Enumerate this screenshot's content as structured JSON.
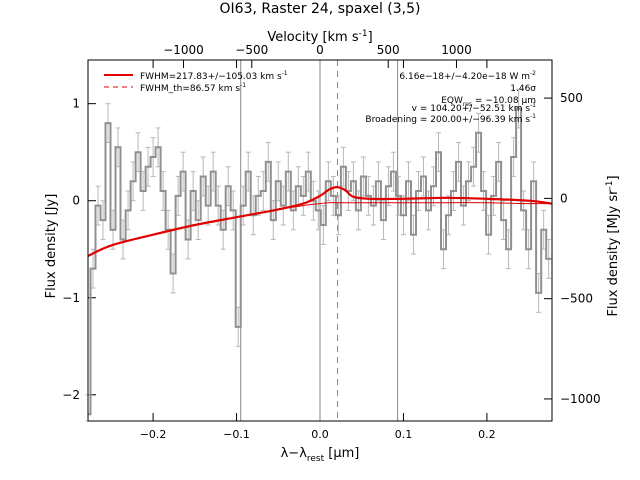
{
  "chart_data": {
    "type": "line",
    "title": "OI63, Raster 24, spaxel (3,5)",
    "xlabel": "λ−λ",
    "xlabel_sub": "rest",
    "xlabel_unit": " [μm]",
    "ylabel": "Flux density [Jy]",
    "top_axis_label": "Velocity [km s",
    "top_axis_label_sup": "-1",
    "top_axis_label_end": "]",
    "right_axis_label": "Flux density [MJy sr",
    "right_axis_label_sup": "-1",
    "right_axis_label_end": "]",
    "xlim": [
      -0.278,
      0.278
    ],
    "ylim": [
      -2.27,
      1.45
    ],
    "top_lim": [
      -1700,
      1700
    ],
    "right_lim": [
      -1110,
      690
    ],
    "x_ticks": [
      -0.2,
      -0.1,
      0.0,
      0.1,
      0.2
    ],
    "x_tick_labels": [
      "−0.2",
      "−0.1",
      "0.0",
      "0.1",
      "0.2"
    ],
    "y_ticks": [
      -2,
      -1,
      0,
      1
    ],
    "y_tick_labels": [
      "−2",
      "−1",
      "0",
      "1"
    ],
    "top_ticks": [
      -1000,
      -500,
      0,
      500,
      1000
    ],
    "top_tick_labels": [
      "−1000",
      "−500",
      "0",
      "500",
      "1000"
    ],
    "right_ticks": [
      -1000,
      -500,
      0,
      500
    ],
    "right_tick_labels": [
      "−1000",
      "−500",
      "0",
      "500"
    ],
    "vlines_solid": [
      -0.095,
      0.0,
      0.093
    ],
    "vline_dashed": 0.021,
    "legend": {
      "placement": "top-left",
      "fit_label": "FWHM=217.83+/−105.03 km s",
      "fit_label_sup": "-1",
      "th_label": "FWHM_th=86.57 km s",
      "th_label_sup": "-1"
    },
    "annotations": {
      "flux": "6.16e−18+/−4.20e−18 W m",
      "flux_sup": "-2",
      "sigma": "1.46σ",
      "eqw_pre": "EQW",
      "eqw_sub": "res",
      "eqw_post": " = −10.08 μm",
      "velocity": "v = 104.20+/−52.51 km s",
      "velocity_sup": "-1",
      "broadening": "Broadening = 200.00+/−96.39 km s",
      "broadening_sup": "-1"
    },
    "colors": {
      "data": "#909090",
      "errorbar": "#b8b8b8",
      "fit": "#e00000",
      "grid": "#888888"
    },
    "series": [
      {
        "name": "data",
        "x": [
          -0.278,
          -0.272,
          -0.266,
          -0.26,
          -0.254,
          -0.248,
          -0.242,
          -0.236,
          -0.23,
          -0.224,
          -0.218,
          -0.212,
          -0.206,
          -0.2,
          -0.194,
          -0.188,
          -0.182,
          -0.176,
          -0.17,
          -0.164,
          -0.158,
          -0.152,
          -0.146,
          -0.14,
          -0.134,
          -0.128,
          -0.122,
          -0.116,
          -0.11,
          -0.104,
          -0.098,
          -0.092,
          -0.086,
          -0.08,
          -0.074,
          -0.068,
          -0.062,
          -0.056,
          -0.05,
          -0.044,
          -0.038,
          -0.032,
          -0.026,
          -0.02,
          -0.014,
          -0.008,
          -0.002,
          0.004,
          0.01,
          0.016,
          0.022,
          0.028,
          0.034,
          0.04,
          0.046,
          0.052,
          0.058,
          0.064,
          0.07,
          0.076,
          0.082,
          0.088,
          0.094,
          0.1,
          0.106,
          0.112,
          0.118,
          0.124,
          0.13,
          0.136,
          0.142,
          0.148,
          0.154,
          0.16,
          0.166,
          0.172,
          0.178,
          0.184,
          0.19,
          0.196,
          0.202,
          0.208,
          0.214,
          0.22,
          0.226,
          0.232,
          0.238,
          0.244,
          0.25,
          0.256,
          0.262,
          0.268,
          0.274
        ],
        "y": [
          -2.2,
          -0.7,
          -0.05,
          -0.2,
          0.8,
          -0.3,
          0.55,
          -0.4,
          -0.1,
          0.2,
          0.5,
          0.1,
          0.35,
          0.45,
          0.55,
          0.1,
          -0.3,
          -0.75,
          0.05,
          0.3,
          -0.4,
          0.1,
          -0.2,
          0.25,
          -0.05,
          0.3,
          -0.05,
          -0.3,
          0.15,
          -0.1,
          -1.3,
          -0.05,
          0.3,
          -0.15,
          0.05,
          0.1,
          0.4,
          -0.2,
          0.2,
          -0.05,
          0.3,
          -0.1,
          0.15,
          0.05,
          0.3,
          0.0,
          -0.1,
          -0.25,
          0.2,
          0.05,
          -0.15,
          0.35,
          0.1,
          0.2,
          -0.1,
          0.25,
          0.05,
          -0.05,
          0.2,
          -0.2,
          0.15,
          0.3,
          0.05,
          -0.15,
          0.2,
          -0.35,
          0.1,
          0.25,
          -0.1,
          0.15,
          0.5,
          -0.5,
          -0.15,
          0.1,
          0.4,
          -0.05,
          0.2,
          0.35,
          0.7,
          0.1,
          -0.35,
          0.05,
          0.4,
          -0.2,
          -0.5,
          0.45,
          0.95,
          -0.1,
          -0.5,
          0.2,
          -0.95,
          -0.3,
          -0.6
        ],
        "err": [
          0.2,
          0.2,
          0.2,
          0.2,
          0.2,
          0.2,
          0.2,
          0.2,
          0.2,
          0.2,
          0.2,
          0.2,
          0.2,
          0.2,
          0.2,
          0.2,
          0.2,
          0.2,
          0.2,
          0.2,
          0.2,
          0.2,
          0.2,
          0.2,
          0.2,
          0.2,
          0.2,
          0.2,
          0.2,
          0.2,
          0.2,
          0.2,
          0.2,
          0.2,
          0.2,
          0.2,
          0.2,
          0.2,
          0.2,
          0.2,
          0.2,
          0.2,
          0.2,
          0.2,
          0.2,
          0.2,
          0.2,
          0.2,
          0.2,
          0.2,
          0.2,
          0.2,
          0.2,
          0.2,
          0.2,
          0.2,
          0.2,
          0.2,
          0.2,
          0.2,
          0.2,
          0.2,
          0.2,
          0.2,
          0.2,
          0.2,
          0.2,
          0.2,
          0.2,
          0.2,
          0.2,
          0.2,
          0.2,
          0.2,
          0.2,
          0.2,
          0.2,
          0.2,
          0.2,
          0.2,
          0.2,
          0.2,
          0.2,
          0.2,
          0.2,
          0.2,
          0.2,
          0.2,
          0.2,
          0.2,
          0.2,
          0.2,
          0.2
        ]
      },
      {
        "name": "fit",
        "x": [
          -0.278,
          -0.25,
          -0.2,
          -0.15,
          -0.1,
          -0.05,
          -0.02,
          0.0,
          0.01,
          0.02,
          0.03,
          0.04,
          0.06,
          0.1,
          0.15,
          0.2,
          0.25,
          0.278
        ],
        "y": [
          -0.57,
          -0.46,
          -0.35,
          -0.25,
          -0.17,
          -0.09,
          -0.03,
          0.05,
          0.11,
          0.14,
          0.11,
          0.04,
          0.02,
          0.02,
          0.03,
          0.02,
          0.0,
          -0.03
        ]
      },
      {
        "name": "FWHM_th",
        "x": [
          -0.278,
          -0.25,
          -0.2,
          -0.15,
          -0.1,
          -0.05,
          -0.02,
          0.0,
          0.01,
          0.02,
          0.03,
          0.04,
          0.06,
          0.1,
          0.15,
          0.2,
          0.25,
          0.278
        ],
        "y": [
          -0.57,
          -0.46,
          -0.35,
          -0.25,
          -0.17,
          -0.09,
          -0.05,
          -0.03,
          -0.02,
          -0.02,
          -0.02,
          -0.02,
          -0.02,
          -0.02,
          -0.02,
          -0.02,
          -0.03,
          -0.03
        ]
      }
    ]
  }
}
